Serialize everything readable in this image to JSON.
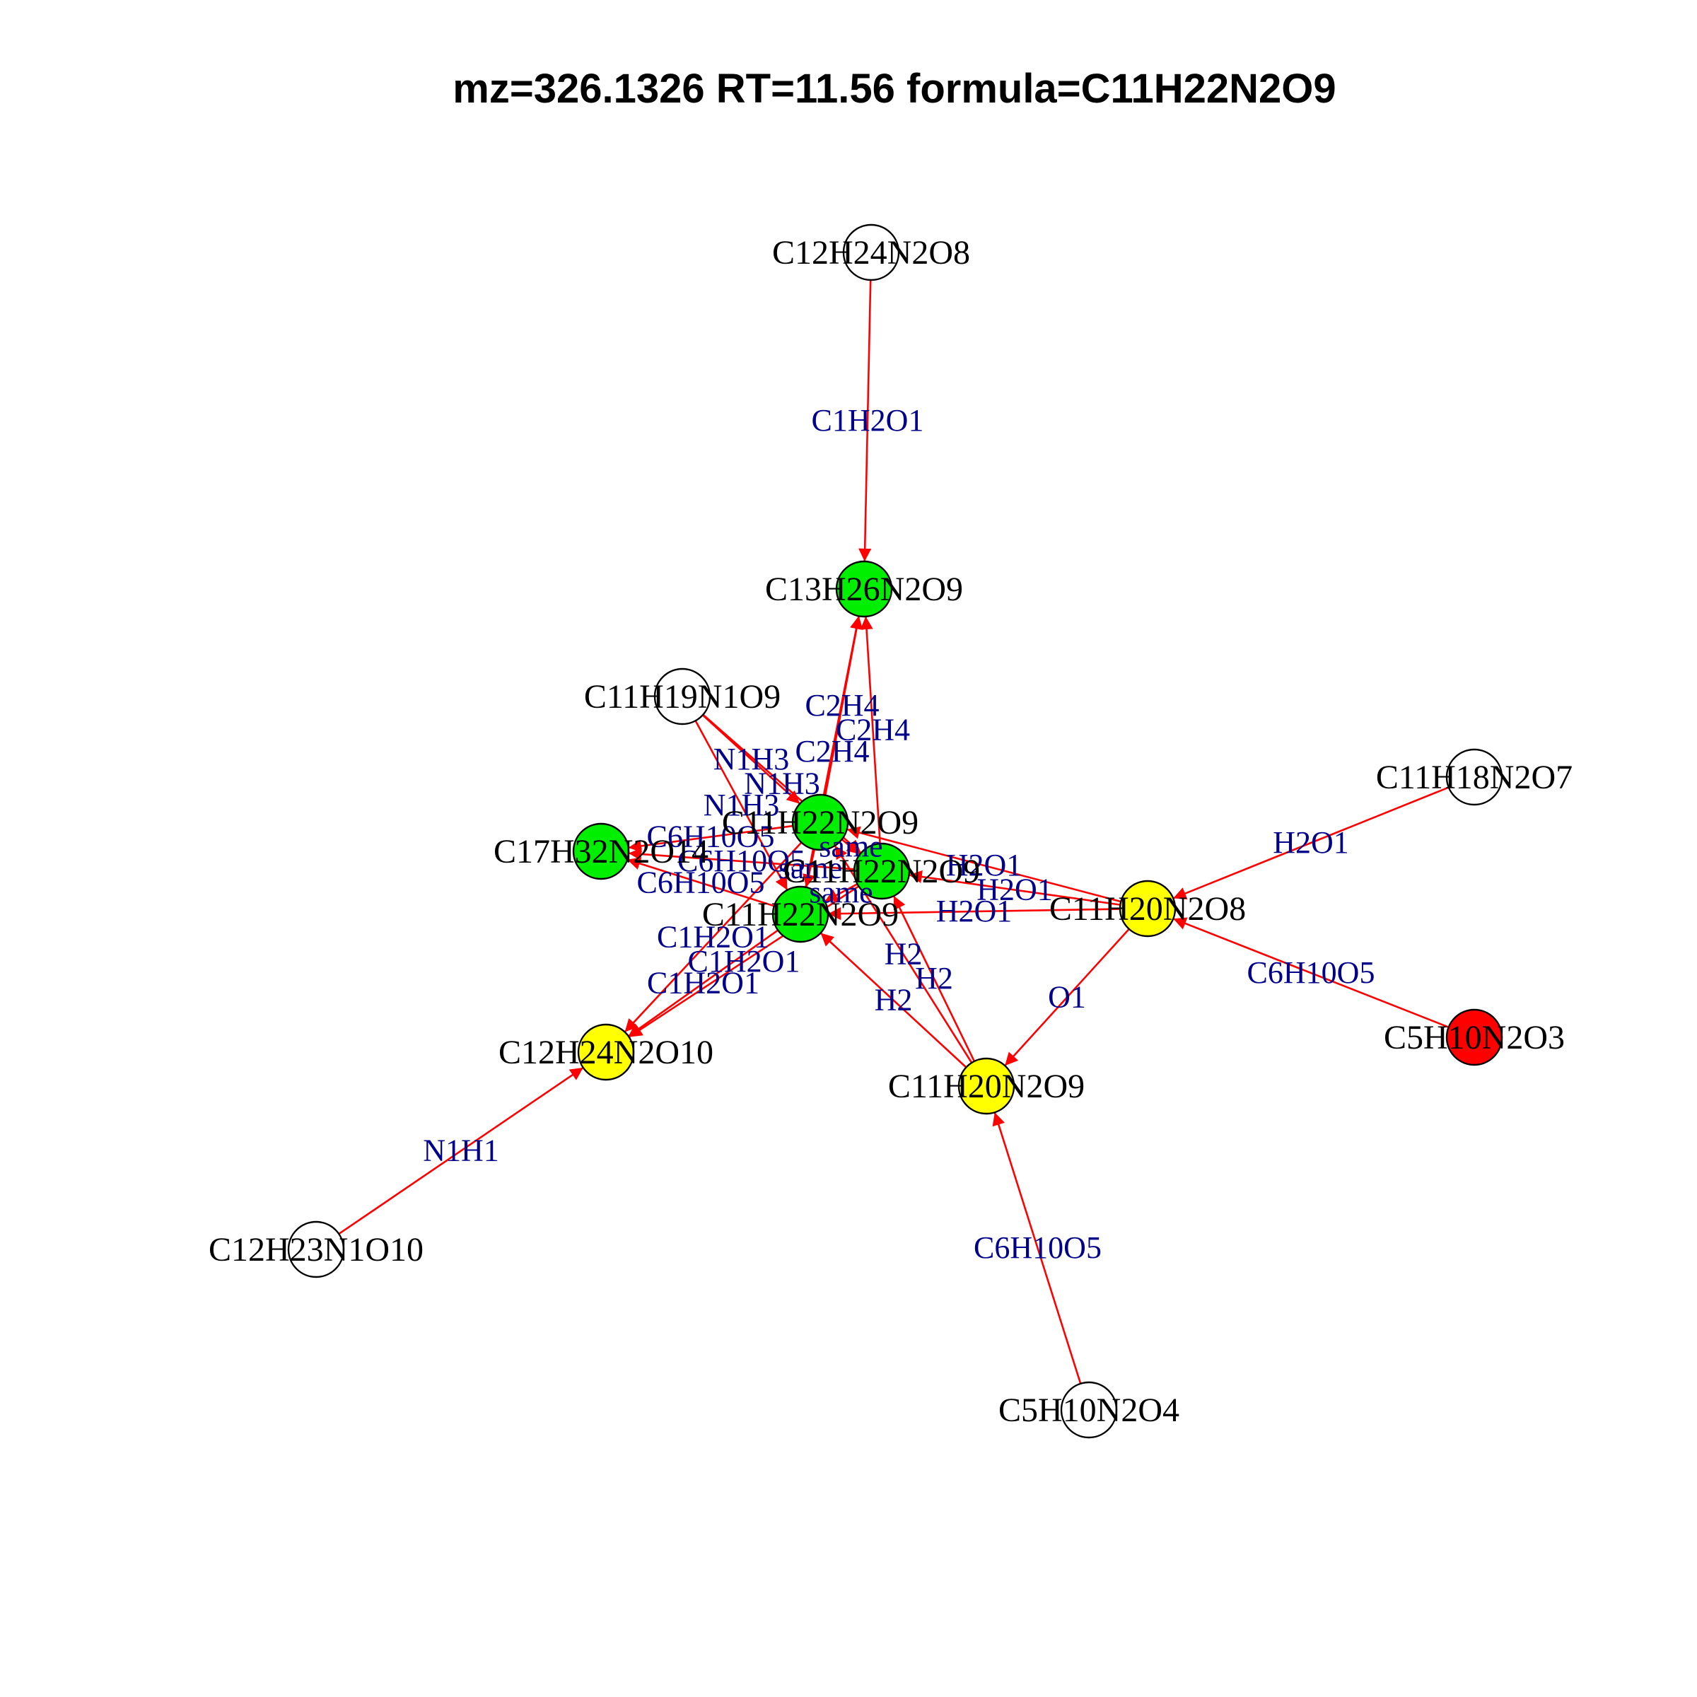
{
  "title": "mz=326.1326 RT=11.56 formula=C11H22N2O9",
  "colors": {
    "green": "#00ee00",
    "yellow": "#ffff00",
    "red": "#ff0000",
    "none": "#ffffff",
    "edge": "#ff0000",
    "edge_label": "#00008b"
  },
  "nodes": [
    {
      "id": "n1",
      "label": "C12H24N2O8",
      "color": "none"
    },
    {
      "id": "n2",
      "label": "C13H26N2O9",
      "color": "green"
    },
    {
      "id": "n3",
      "label": "C11H19N1O9",
      "color": "none"
    },
    {
      "id": "n4",
      "label": "C11H18N2O7",
      "color": "none"
    },
    {
      "id": "n5",
      "label": "C11H22N2O9",
      "color": "green"
    },
    {
      "id": "n6",
      "label": "C17H32N2O14",
      "color": "green"
    },
    {
      "id": "n7",
      "label": "C11H22N2O9",
      "color": "green"
    },
    {
      "id": "n8",
      "label": "C11H20N2O8",
      "color": "yellow"
    },
    {
      "id": "n9",
      "label": "C11H22N2O9",
      "color": "green"
    },
    {
      "id": "n10",
      "label": "C5H10N2O3",
      "color": "red"
    },
    {
      "id": "n11",
      "label": "C12H24N2O10",
      "color": "yellow"
    },
    {
      "id": "n12",
      "label": "C11H20N2O9",
      "color": "yellow"
    },
    {
      "id": "n13",
      "label": "C12H23N1O10",
      "color": "none"
    },
    {
      "id": "n14",
      "label": "C5H10N2O4",
      "color": "none"
    }
  ],
  "edges": [
    {
      "from": "n1",
      "to": "n2",
      "label": "C1H2O1"
    },
    {
      "from": "n5",
      "to": "n2",
      "label": "C2H4"
    },
    {
      "from": "n7",
      "to": "n2",
      "label": "C2H4"
    },
    {
      "from": "n9",
      "to": "n2",
      "label": "C2H4"
    },
    {
      "from": "n3",
      "to": "n5",
      "label": "N1H3"
    },
    {
      "from": "n3",
      "to": "n7",
      "label": "N1H3"
    },
    {
      "from": "n3",
      "to": "n9",
      "label": "N1H3"
    },
    {
      "from": "n5",
      "to": "n6",
      "label": "C6H10O5"
    },
    {
      "from": "n7",
      "to": "n6",
      "label": "C6H10O5"
    },
    {
      "from": "n9",
      "to": "n6",
      "label": "C6H10O5"
    },
    {
      "from": "n8",
      "to": "n5",
      "label": "H2O1"
    },
    {
      "from": "n8",
      "to": "n7",
      "label": "H2O1"
    },
    {
      "from": "n8",
      "to": "n9",
      "label": "H2O1"
    },
    {
      "from": "n5",
      "to": "n7",
      "label": "same"
    },
    {
      "from": "n5",
      "to": "n9",
      "label": "same"
    },
    {
      "from": "n7",
      "to": "n9",
      "label": "same"
    },
    {
      "from": "n5",
      "to": "n11",
      "label": "C1H2O1"
    },
    {
      "from": "n7",
      "to": "n11",
      "label": "C1H2O1"
    },
    {
      "from": "n9",
      "to": "n11",
      "label": "C1H2O1"
    },
    {
      "from": "n12",
      "to": "n5",
      "label": "H2"
    },
    {
      "from": "n12",
      "to": "n7",
      "label": "H2"
    },
    {
      "from": "n12",
      "to": "n9",
      "label": "H2"
    },
    {
      "from": "n4",
      "to": "n8",
      "label": "H2O1"
    },
    {
      "from": "n10",
      "to": "n8",
      "label": "C6H10O5"
    },
    {
      "from": "n8",
      "to": "n12",
      "label": "O1"
    },
    {
      "from": "n13",
      "to": "n11",
      "label": "N1H1"
    },
    {
      "from": "n14",
      "to": "n12",
      "label": "C6H10O5"
    }
  ]
}
